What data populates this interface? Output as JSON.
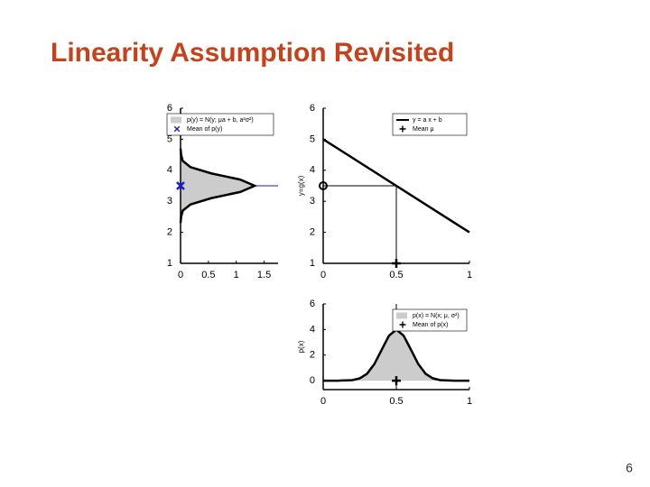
{
  "title": "Linearity Assumption Revisited",
  "page_number": "6",
  "chart_data": [
    {
      "type": "area",
      "orientation": "horizontal",
      "legend": "upper left",
      "series": [
        {
          "name": "p(y) = N(y; μa + b, a²σ²)",
          "color": "#cccccc",
          "x": [
            0,
            0.01,
            0.04,
            0.18,
            0.55,
            1.07,
            1.33,
            1.07,
            0.55,
            0.18,
            0.04,
            0.01,
            0
          ],
          "values": [
            2.3,
            2.5,
            2.7,
            2.9,
            3.1,
            3.3,
            3.5,
            3.7,
            3.9,
            4.1,
            4.3,
            4.5,
            4.7
          ]
        }
      ],
      "markers": [
        {
          "name": "Mean of p(y)",
          "x": 0,
          "y": 3.5,
          "marker": "x",
          "color": "#1a1acc"
        }
      ],
      "guide": {
        "y": 3.5,
        "color": "#1a1acc"
      },
      "xlim": [
        0,
        1.75
      ],
      "xticks": [
        0,
        0.5,
        1,
        1.5
      ],
      "ylim": [
        1,
        6
      ],
      "yticks": [
        1,
        2,
        3,
        4,
        5,
        6
      ]
    },
    {
      "type": "line",
      "legend": "upper right",
      "ylabel": "y=g(x)",
      "series": [
        {
          "name": "y = a x + b",
          "color": "#000000",
          "x": [
            0,
            1
          ],
          "values": [
            5,
            2
          ]
        }
      ],
      "markers": [
        {
          "name": "Mean μ",
          "x": 0.5,
          "y": 1,
          "marker": "+",
          "color": "#000000"
        },
        {
          "x": 0,
          "y": 3.5,
          "marker": "o",
          "color": "#000000"
        }
      ],
      "guide": {
        "x": 0.5,
        "y": 3.5,
        "color": "#000000"
      },
      "xlim": [
        0,
        1
      ],
      "xticks": [
        0,
        0.5,
        1
      ],
      "ylim": [
        1,
        6
      ],
      "yticks": [
        1,
        2,
        3,
        4,
        5,
        6
      ]
    },
    {
      "type": "area",
      "legend": "upper right",
      "ylabel": "p(x)",
      "series": [
        {
          "name": "p(x) = N(x; μ, σ²)",
          "color": "#cccccc",
          "x": [
            0,
            0.1,
            0.2,
            0.25,
            0.3,
            0.35,
            0.4,
            0.45,
            0.5,
            0.55,
            0.6,
            0.65,
            0.7,
            0.75,
            0.8,
            0.9,
            1
          ],
          "values": [
            0,
            0,
            0.04,
            0.18,
            0.54,
            1.3,
            2.42,
            3.52,
            3.99,
            3.52,
            2.42,
            1.3,
            0.54,
            0.18,
            0.04,
            0,
            0
          ]
        }
      ],
      "markers": [
        {
          "name": "Mean of p(x)",
          "x": 0.5,
          "y": 0,
          "marker": "+",
          "color": "#000000"
        }
      ],
      "guide": {
        "x": 0.5,
        "color": "#000000"
      },
      "xlim": [
        0,
        1
      ],
      "xticks": [
        0,
        0.5,
        1
      ],
      "ylim": [
        -0.7,
        6
      ],
      "yticks": [
        0,
        2,
        4,
        6
      ]
    }
  ]
}
